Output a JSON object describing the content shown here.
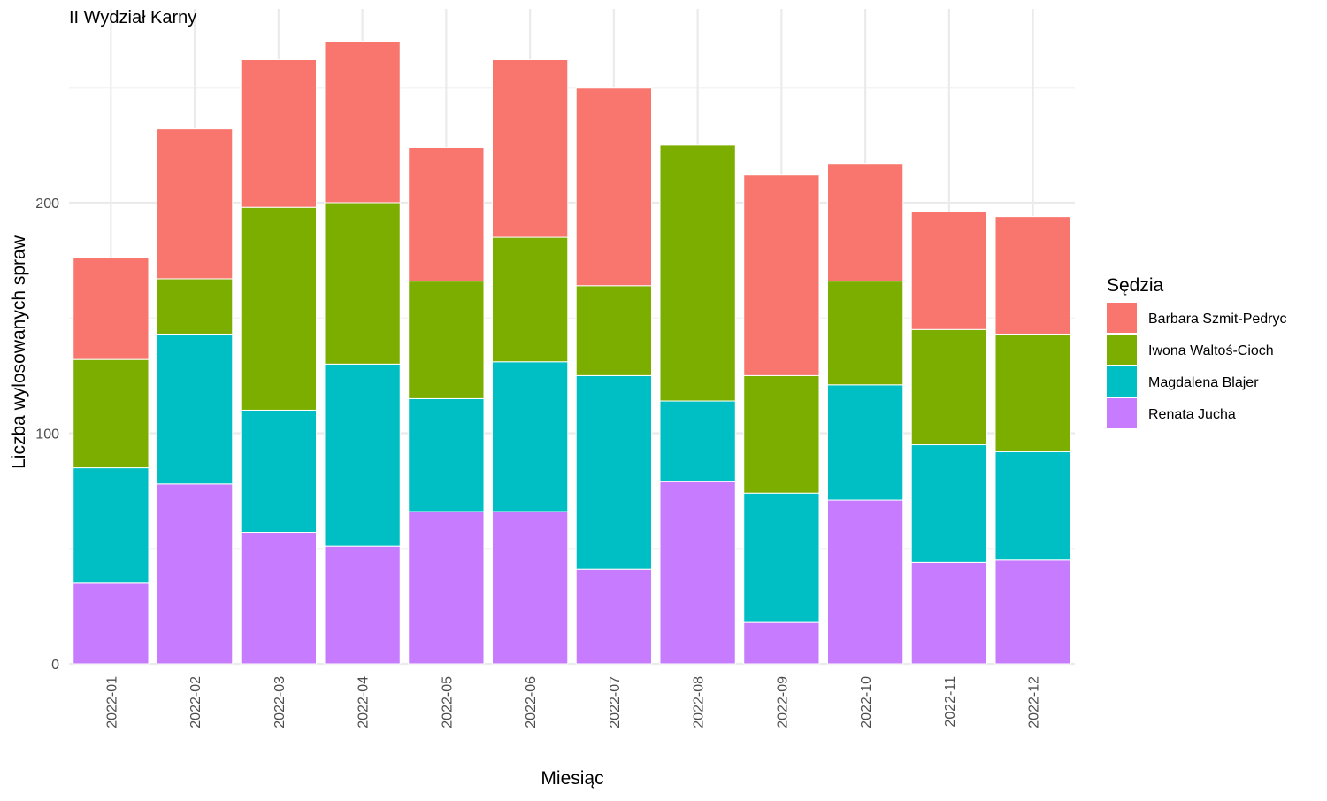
{
  "chart_data": {
    "type": "bar",
    "stacked": true,
    "title": "II Wydział Karny",
    "xlabel": "Miesiąc",
    "ylabel": "Liczba wylosowanych spraw",
    "ylim": [
      0,
      270
    ],
    "y_ticks": [
      0,
      100,
      200
    ],
    "grid": true,
    "legend_title": "Sędzia",
    "legend_position": "right",
    "categories": [
      "2022-01",
      "2022-02",
      "2022-03",
      "2022-04",
      "2022-05",
      "2022-06",
      "2022-07",
      "2022-08",
      "2022-09",
      "2022-10",
      "2022-11",
      "2022-12"
    ],
    "series": [
      {
        "name": "Renata Jucha",
        "color": "#C77CFF",
        "values": [
          35,
          78,
          57,
          51,
          66,
          66,
          41,
          79,
          18,
          71,
          44,
          45
        ]
      },
      {
        "name": "Magdalena Blajer",
        "color": "#00BFC4",
        "values": [
          50,
          65,
          53,
          79,
          49,
          65,
          84,
          35,
          56,
          50,
          51,
          47
        ]
      },
      {
        "name": "Iwona Waltoś-Cioch",
        "color": "#7CAE00",
        "values": [
          47,
          24,
          88,
          70,
          51,
          54,
          39,
          111,
          51,
          45,
          50,
          51
        ]
      },
      {
        "name": "Barbara Szmit-Pedryc",
        "color": "#F8766D",
        "values": [
          44,
          65,
          64,
          70,
          58,
          77,
          86,
          0,
          87,
          51,
          51,
          51
        ]
      }
    ],
    "legend_order": [
      "Barbara Szmit-Pedryc",
      "Iwona Waltoś-Cioch",
      "Magdalena Blajer",
      "Renata Jucha"
    ]
  }
}
